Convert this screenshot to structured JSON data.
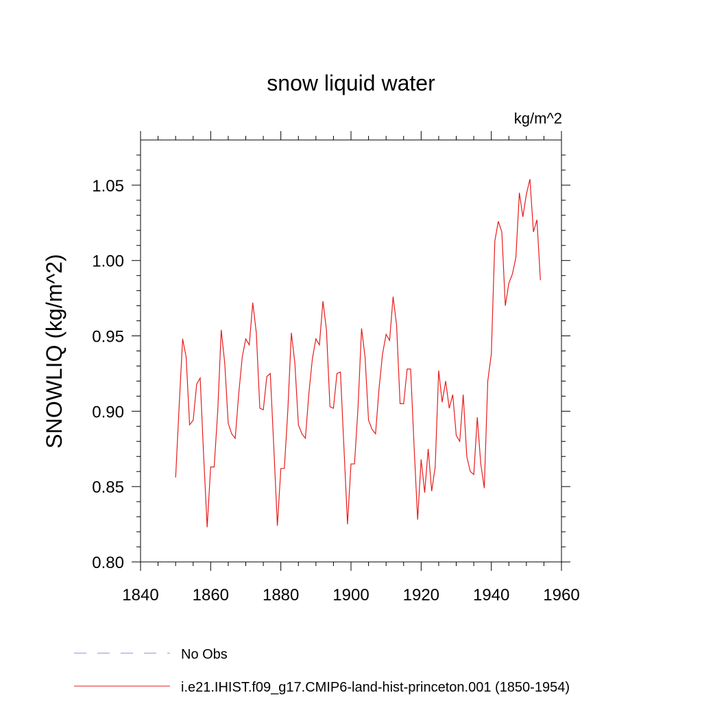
{
  "chart_data": {
    "type": "line",
    "title": "snow liquid water",
    "units_label": "kg/m^2",
    "ylabel": "SNOWLIQ  (kg/m^2)",
    "xlabel": "",
    "xlim": [
      1840,
      1960
    ],
    "ylim": [
      0.8,
      1.08
    ],
    "x_ticks": [
      1840,
      1860,
      1880,
      1900,
      1920,
      1940,
      1960
    ],
    "x_tick_labels": [
      "1840",
      "1860",
      "1880",
      "1900",
      "1920",
      "1940",
      "1960"
    ],
    "y_ticks": [
      0.8,
      0.85,
      0.9,
      0.95,
      1.0,
      1.05
    ],
    "y_tick_labels": [
      "0.80",
      "0.85",
      "0.90",
      "0.95",
      "1.00",
      "1.05"
    ],
    "grid": false,
    "legend_position": "bottom",
    "legend": [
      {
        "label": "No Obs",
        "color": "#8c8cd9",
        "dashed": true
      },
      {
        "label": "i.e21.IHIST.f09_g17.CMIP6-land-hist-princeton.001 (1850-1954)",
        "color": "#e81a1a",
        "dashed": false
      }
    ],
    "series": [
      {
        "name": "i.e21.IHIST.f09_g17.CMIP6-land-hist-princeton.001 (1850-1954)",
        "color": "#e81a1a",
        "x": [
          1850,
          1851,
          1852,
          1853,
          1854,
          1855,
          1856,
          1857,
          1858,
          1859,
          1860,
          1861,
          1862,
          1863,
          1864,
          1865,
          1866,
          1867,
          1868,
          1869,
          1870,
          1871,
          1872,
          1873,
          1874,
          1875,
          1876,
          1877,
          1878,
          1879,
          1880,
          1881,
          1882,
          1883,
          1884,
          1885,
          1886,
          1887,
          1888,
          1889,
          1890,
          1891,
          1892,
          1893,
          1894,
          1895,
          1896,
          1897,
          1898,
          1899,
          1900,
          1901,
          1902,
          1903,
          1904,
          1905,
          1906,
          1907,
          1908,
          1909,
          1910,
          1911,
          1912,
          1913,
          1914,
          1915,
          1916,
          1917,
          1918,
          1919,
          1920,
          1921,
          1922,
          1923,
          1924,
          1925,
          1926,
          1927,
          1928,
          1929,
          1930,
          1931,
          1932,
          1933,
          1934,
          1935,
          1936,
          1937,
          1938,
          1939,
          1940,
          1941,
          1942,
          1943,
          1944,
          1945,
          1946,
          1947,
          1948,
          1949,
          1950,
          1951,
          1952,
          1953,
          1954
        ],
        "values": [
          0.856,
          0.903,
          0.948,
          0.936,
          0.891,
          0.894,
          0.918,
          0.922,
          0.87,
          0.823,
          0.863,
          0.863,
          0.9,
          0.954,
          0.932,
          0.892,
          0.885,
          0.882,
          0.912,
          0.936,
          0.948,
          0.944,
          0.972,
          0.952,
          0.902,
          0.901,
          0.923,
          0.925,
          0.876,
          0.824,
          0.862,
          0.862,
          0.901,
          0.952,
          0.932,
          0.891,
          0.885,
          0.882,
          0.912,
          0.935,
          0.948,
          0.944,
          0.973,
          0.954,
          0.903,
          0.902,
          0.925,
          0.926,
          0.875,
          0.825,
          0.865,
          0.865,
          0.902,
          0.955,
          0.936,
          0.894,
          0.888,
          0.885,
          0.915,
          0.938,
          0.951,
          0.947,
          0.976,
          0.957,
          0.905,
          0.905,
          0.928,
          0.928,
          0.876,
          0.828,
          0.868,
          0.846,
          0.875,
          0.847,
          0.863,
          0.927,
          0.906,
          0.92,
          0.902,
          0.911,
          0.884,
          0.88,
          0.911,
          0.87,
          0.86,
          0.858,
          0.896,
          0.865,
          0.849,
          0.92,
          0.938,
          1.013,
          1.026,
          1.019,
          0.97,
          0.985,
          0.991,
          1.002,
          1.045,
          1.029,
          1.044,
          1.054,
          1.019,
          1.027,
          0.987
        ]
      }
    ]
  }
}
